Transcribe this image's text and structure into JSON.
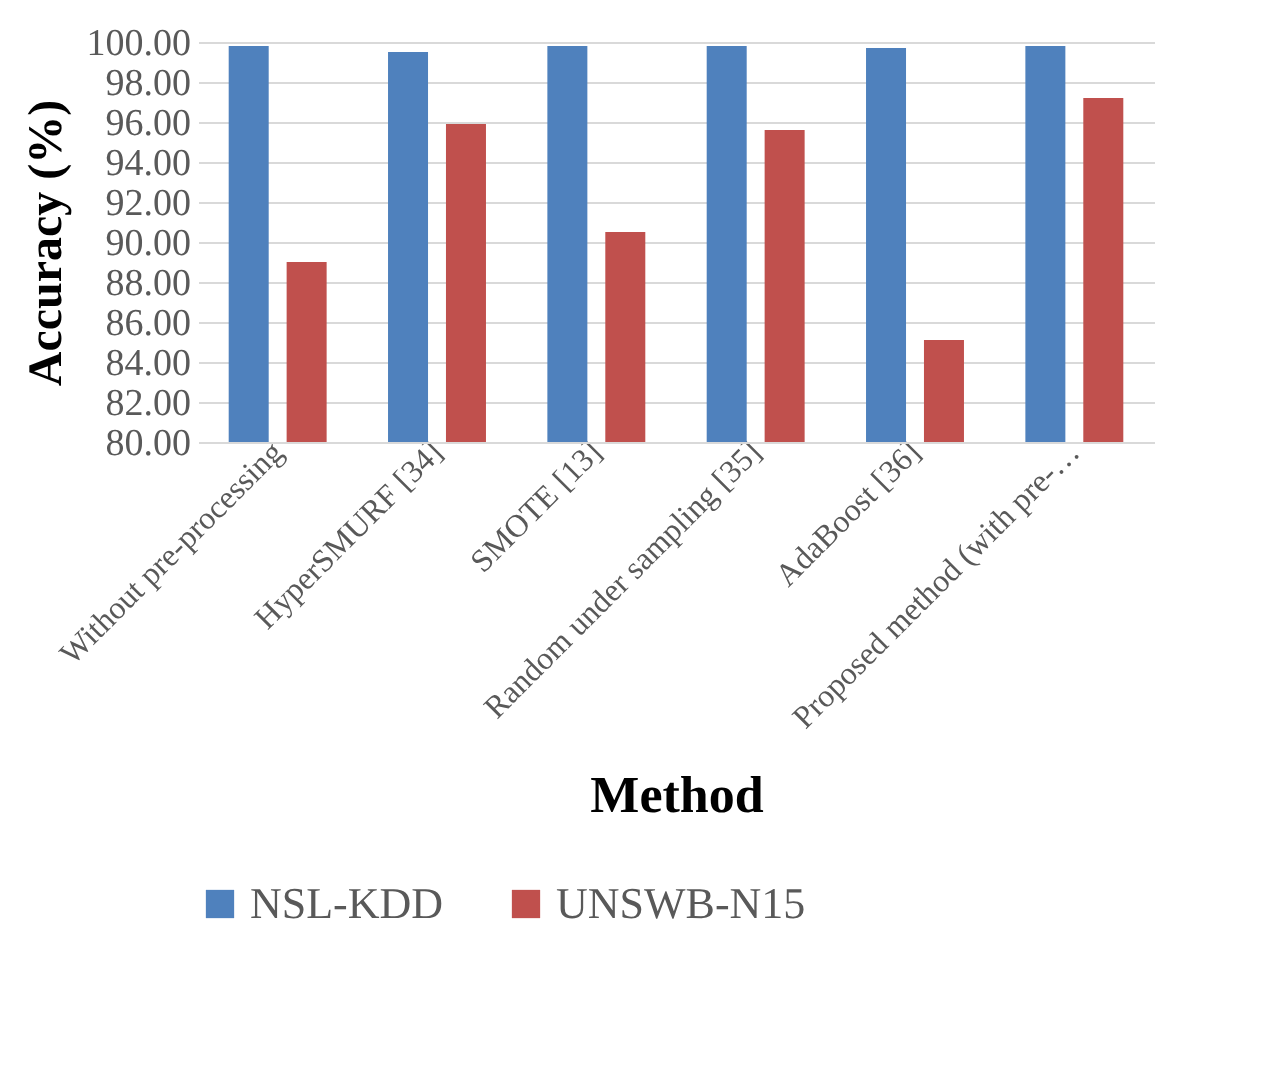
{
  "chart_data": {
    "type": "bar",
    "xlabel": "Method",
    "ylabel": "Accuracy (%)",
    "categories": [
      "Without pre-processing",
      "HyperSMURF [34]",
      "SMOTE [13]",
      "Random under sampling [35]",
      "AdaBoost [36]",
      "Proposed method (with pre-…"
    ],
    "series": [
      {
        "name": "NSL-KDD",
        "color": "#4f81bd",
        "values": [
          99.8,
          99.5,
          99.8,
          99.8,
          99.7,
          99.8
        ]
      },
      {
        "name": "UNSWB-N15",
        "color": "#c0504d",
        "values": [
          89.0,
          95.9,
          90.5,
          95.6,
          85.1,
          97.2
        ]
      }
    ],
    "ylim": [
      80,
      100
    ],
    "yticks": [
      {
        "value": 80,
        "label": "80.00"
      },
      {
        "value": 82,
        "label": "82.00"
      },
      {
        "value": 84,
        "label": "84.00"
      },
      {
        "value": 86,
        "label": "86.00"
      },
      {
        "value": 88,
        "label": "88.00"
      },
      {
        "value": 90,
        "label": "90.00"
      },
      {
        "value": 92,
        "label": "92.00"
      },
      {
        "value": 94,
        "label": "94.00"
      },
      {
        "value": 96,
        "label": "96.00"
      },
      {
        "value": 98,
        "label": "98.00"
      },
      {
        "value": 100,
        "label": "100.00"
      }
    ],
    "grid": "y",
    "legend": "bottom"
  }
}
